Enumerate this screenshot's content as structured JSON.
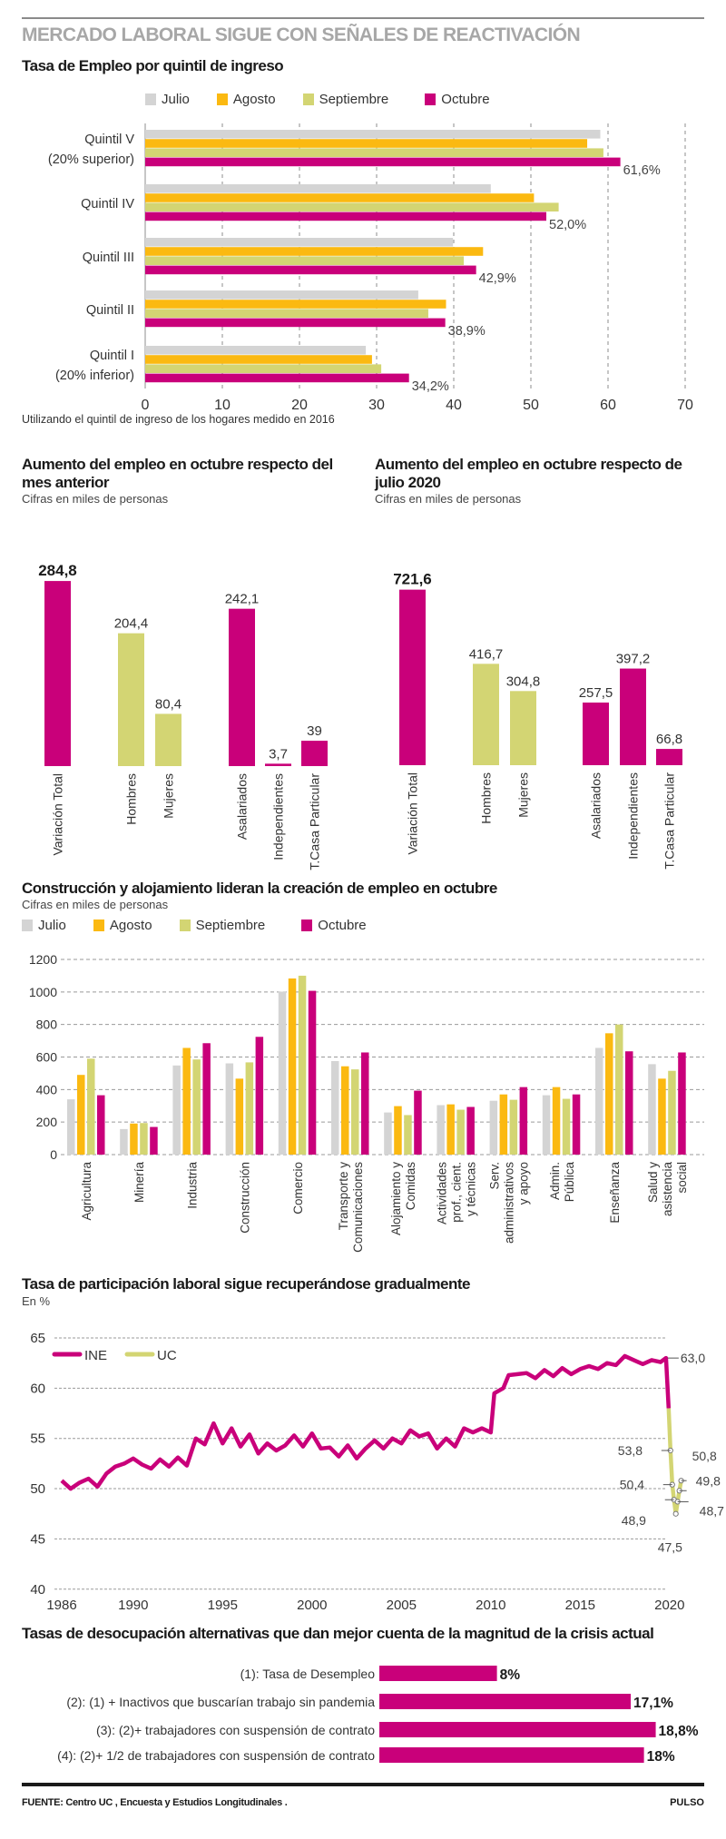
{
  "header": {
    "title": "MERCADO LABORAL SIGUE CON SEÑALES DE REACTIVACIÓN"
  },
  "colors": {
    "julio": "#d4d4d4",
    "agosto": "#fbb911",
    "septiembre": "#d3d573",
    "octubre": "#c9007a",
    "grid": "#9a9a9a",
    "text": "#333333"
  },
  "legend": {
    "julio": "Julio",
    "agosto": "Agosto",
    "septiembre": "Septiembre",
    "octubre": "Octubre"
  },
  "chart_data": [
    {
      "id": "quintiles",
      "type": "bar",
      "orientation": "horizontal",
      "title": "Tasa de Empleo por quintil de ingreso",
      "note": "Utilizando el quintil de ingreso de los hogares medido en 2016",
      "categories": [
        "Quintil V\n(20% superior)",
        "Quintil IV",
        "Quintil III",
        "Quintil II",
        "Quintil I\n(20% inferior)"
      ],
      "series": [
        {
          "name": "Julio",
          "values": [
            59.0,
            44.8,
            39.9,
            35.4,
            28.6
          ]
        },
        {
          "name": "Agosto",
          "values": [
            57.3,
            50.4,
            43.8,
            39.0,
            29.4
          ]
        },
        {
          "name": "Septiembre",
          "values": [
            59.4,
            53.6,
            41.3,
            36.7,
            30.6
          ]
        },
        {
          "name": "Octubre",
          "values": [
            61.6,
            52.0,
            42.9,
            38.9,
            34.2
          ]
        }
      ],
      "data_labels": [
        "61,6%",
        "52,0%",
        "42,9%",
        "38,9%",
        "34,2%"
      ],
      "xlim": [
        0,
        70
      ],
      "xticks": [
        "0",
        "10",
        "20",
        "30",
        "40",
        "50",
        "60",
        "70"
      ],
      "grid": true,
      "legend_position": "top"
    },
    {
      "id": "aumento-mes-anterior",
      "type": "bar",
      "title": "Aumento del empleo en octubre respecto del mes anterior",
      "subtitle": "Cifras en miles de personas",
      "categories": [
        "Variación Total",
        "Hombres",
        "Mujeres",
        "Asalariados",
        "Independientes",
        "T.Casa Particular"
      ],
      "values": [
        284.8,
        204.4,
        80.4,
        242.1,
        3.7,
        39
      ],
      "data_labels": [
        "284,8",
        "204,4",
        "80,4",
        "242,1",
        "3,7",
        "39"
      ],
      "bar_colors": [
        "octubre",
        "septiembre",
        "septiembre",
        "octubre",
        "octubre",
        "octubre"
      ],
      "grid": false
    },
    {
      "id": "aumento-julio",
      "type": "bar",
      "title": "Aumento del empleo en octubre respecto de julio 2020",
      "subtitle": "Cifras en miles de personas",
      "categories": [
        "Variación Total",
        "Hombres",
        "Mujeres",
        "Asalariados",
        "Independientes",
        "T.Casa Particular"
      ],
      "values": [
        721.6,
        416.7,
        304.8,
        257.5,
        397.2,
        66.8
      ],
      "data_labels": [
        "721,6",
        "416,7",
        "304,8",
        "257,5",
        "397,2",
        "66,8"
      ],
      "bar_colors": [
        "octubre",
        "septiembre",
        "septiembre",
        "octubre",
        "octubre",
        "octubre"
      ],
      "grid": false
    },
    {
      "id": "sectores",
      "type": "bar",
      "title": "Construcción y alojamiento lideran la creación de empleo en octubre",
      "subtitle": "Cifras en miles de personas",
      "categories": [
        "Agricultura",
        "Minería",
        "Industria",
        "Construcción",
        "Comercio",
        "Transporte y\nComunicaciones",
        "Alojamiento y\nComidas",
        "Actividades\nprof., cient.\ny técnicas",
        "Serv.\nadministrativos\ny apoyo",
        "Admin.\nPública",
        "Enseñanza",
        "Salud y\nasistencia\nsocial"
      ],
      "series": [
        {
          "name": "Julio",
          "values": [
            340,
            157,
            548,
            561,
            1002,
            575,
            259,
            304,
            331,
            365,
            656,
            556
          ]
        },
        {
          "name": "Agosto",
          "values": [
            490,
            191,
            656,
            467,
            1083,
            543,
            298,
            309,
            370,
            415,
            746,
            467
          ]
        },
        {
          "name": "Septiembre",
          "values": [
            590,
            194,
            585,
            567,
            1100,
            524,
            243,
            276,
            337,
            343,
            800,
            515
          ]
        },
        {
          "name": "Octubre",
          "values": [
            365,
            170,
            685,
            724,
            1007,
            628,
            393,
            293,
            415,
            370,
            635,
            628
          ]
        }
      ],
      "ylim": [
        0,
        1200
      ],
      "yticks": [
        "0",
        "200",
        "400",
        "600",
        "800",
        "1000",
        "1200"
      ],
      "grid": true,
      "legend_position": "top-left"
    },
    {
      "id": "participacion",
      "type": "line",
      "title": "Tasa de participación laboral sigue recuperándose gradualmente",
      "ylabel": "En %",
      "ylim": [
        40,
        65
      ],
      "yticks": [
        "40",
        "45",
        "50",
        "55",
        "60",
        "65"
      ],
      "xlim": [
        1986,
        2020
      ],
      "xticks": [
        "1986",
        "1990",
        "1995",
        "2000",
        "2005",
        "2010",
        "2015",
        "2020"
      ],
      "grid": true,
      "legend_position": "top-left",
      "series": [
        {
          "name": "INE",
          "x": [
            1986.0,
            1986.5,
            1987.0,
            1987.5,
            1988.0,
            1988.5,
            1989.0,
            1989.5,
            1990.0,
            1990.5,
            1991.0,
            1991.5,
            1992.0,
            1992.5,
            1993.0,
            1993.5,
            1994.0,
            1994.5,
            1995.0,
            1995.5,
            1996.0,
            1996.5,
            1997.0,
            1997.5,
            1998.0,
            1998.5,
            1999.0,
            1999.5,
            2000.0,
            2000.5,
            2001.0,
            2001.5,
            2002.0,
            2002.5,
            2003.0,
            2003.5,
            2004.0,
            2004.5,
            2005.0,
            2005.5,
            2006.0,
            2006.5,
            2007.0,
            2007.5,
            2008.0,
            2008.5,
            2009.0,
            2009.5,
            2010.0,
            2010.2,
            2010.7,
            2011.0,
            2011.5,
            2012.0,
            2012.5,
            2013.0,
            2013.5,
            2014.0,
            2014.5,
            2015.0,
            2015.5,
            2016.0,
            2016.5,
            2017.0,
            2017.5,
            2018.0,
            2018.5,
            2019.0,
            2019.5,
            2019.8,
            2019.95
          ],
          "y": [
            50.8,
            50.0,
            50.6,
            51.0,
            50.2,
            51.5,
            52.2,
            52.5,
            53.0,
            52.4,
            52.0,
            52.9,
            52.2,
            53.1,
            52.3,
            55.0,
            54.4,
            56.5,
            54.5,
            56.0,
            54.2,
            55.4,
            53.5,
            54.5,
            53.8,
            54.3,
            55.3,
            54.2,
            55.5,
            54.0,
            54.1,
            53.2,
            54.3,
            53.0,
            54.0,
            54.8,
            54.0,
            55.0,
            54.5,
            55.8,
            55.2,
            55.5,
            54.0,
            55.0,
            54.2,
            56.0,
            55.6,
            56.0,
            55.6,
            59.5,
            60.0,
            61.3,
            61.4,
            61.5,
            61.0,
            61.8,
            61.2,
            62.0,
            61.4,
            61.9,
            62.2,
            61.9,
            62.5,
            62.3,
            63.2,
            62.8,
            62.4,
            62.8,
            62.6,
            63.0,
            58.0
          ]
        },
        {
          "name": "UC",
          "x": [
            2019.95,
            2020.05,
            2020.15,
            2020.25,
            2020.35,
            2020.45,
            2020.55,
            2020.65
          ],
          "y": [
            58.0,
            53.8,
            50.4,
            48.9,
            47.5,
            48.7,
            49.8,
            50.8
          ]
        }
      ],
      "annotations": [
        "63,0",
        "53,8",
        "50,4",
        "48,9",
        "47,5",
        "48,7",
        "49,8",
        "50,8"
      ]
    },
    {
      "id": "desocupacion",
      "type": "bar",
      "orientation": "horizontal",
      "title": "Tasas de desocupación alternativas que dan mejor cuenta de la magnitud de la crisis actual",
      "categories": [
        "(1): Tasa de Desempleo",
        "(2): (1) + Inactivos que buscarían trabajo sin pandemia",
        "(3): (2)+ trabajadores con suspensión de contrato",
        "(4): (2)+ 1/2 de trabajadores con suspensión de contrato"
      ],
      "values": [
        8,
        17.1,
        18.8,
        18
      ],
      "data_labels": [
        "8%",
        "17,1%",
        "18,8%",
        "18%"
      ],
      "grid": false
    }
  ],
  "footer": {
    "source": "FUENTE: Centro UC , Encuesta y Estudios Longitudinales .",
    "brand": "PULSO"
  }
}
